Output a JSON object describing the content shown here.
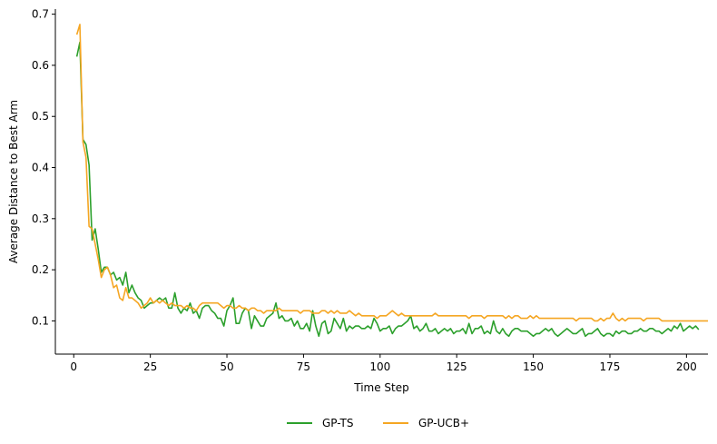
{
  "chart_data": {
    "type": "line",
    "xlabel": "Time Step",
    "ylabel": "Average Distance to Best Arm",
    "xlim": [
      -6,
      207
    ],
    "ylim": [
      0.035,
      0.71
    ],
    "xticks": [
      0,
      25,
      50,
      75,
      100,
      125,
      150,
      175,
      200
    ],
    "yticks": [
      0.1,
      0.2,
      0.3,
      0.4,
      0.5,
      0.6,
      0.7
    ],
    "ytick_labels": [
      "0.1",
      "0.2",
      "0.3",
      "0.4",
      "0.5",
      "0.6",
      "0.7"
    ],
    "grid": false,
    "legend_position": "bottom-center",
    "series": [
      {
        "name": "GP-TS",
        "color": "#2ca02c",
        "values": [
          0.617,
          0.645,
          0.455,
          0.445,
          0.405,
          0.258,
          0.28,
          0.24,
          0.195,
          0.205,
          0.205,
          0.19,
          0.195,
          0.18,
          0.185,
          0.17,
          0.195,
          0.155,
          0.17,
          0.155,
          0.145,
          0.14,
          0.125,
          0.13,
          0.135,
          0.135,
          0.14,
          0.145,
          0.14,
          0.145,
          0.125,
          0.125,
          0.155,
          0.125,
          0.115,
          0.125,
          0.12,
          0.135,
          0.115,
          0.12,
          0.105,
          0.125,
          0.13,
          0.13,
          0.12,
          0.115,
          0.105,
          0.105,
          0.09,
          0.12,
          0.13,
          0.145,
          0.095,
          0.095,
          0.115,
          0.125,
          0.12,
          0.085,
          0.11,
          0.1,
          0.09,
          0.09,
          0.105,
          0.11,
          0.115,
          0.135,
          0.105,
          0.11,
          0.1,
          0.1,
          0.105,
          0.09,
          0.1,
          0.085,
          0.085,
          0.095,
          0.08,
          0.12,
          0.09,
          0.07,
          0.095,
          0.1,
          0.075,
          0.08,
          0.105,
          0.095,
          0.085,
          0.105,
          0.08,
          0.09,
          0.085,
          0.09,
          0.09,
          0.085,
          0.085,
          0.09,
          0.085,
          0.105,
          0.095,
          0.08,
          0.085,
          0.085,
          0.09,
          0.075,
          0.085,
          0.09,
          0.09,
          0.095,
          0.1,
          0.11,
          0.085,
          0.09,
          0.08,
          0.085,
          0.095,
          0.08,
          0.08,
          0.085,
          0.075,
          0.08,
          0.085,
          0.08,
          0.085,
          0.075,
          0.08,
          0.08,
          0.085,
          0.075,
          0.095,
          0.075,
          0.085,
          0.085,
          0.09,
          0.075,
          0.08,
          0.075,
          0.1,
          0.08,
          0.075,
          0.085,
          0.075,
          0.07,
          0.08,
          0.085,
          0.085,
          0.08,
          0.08,
          0.08,
          0.075,
          0.07,
          0.075,
          0.075,
          0.08,
          0.085,
          0.08,
          0.085,
          0.075,
          0.07,
          0.075,
          0.08,
          0.085,
          0.08,
          0.075,
          0.075,
          0.08,
          0.085,
          0.07,
          0.075,
          0.075,
          0.08,
          0.085,
          0.075,
          0.07,
          0.075,
          0.075,
          0.07,
          0.08,
          0.075,
          0.08,
          0.08,
          0.075,
          0.075,
          0.08,
          0.08,
          0.085,
          0.08,
          0.08,
          0.085,
          0.085,
          0.08,
          0.08,
          0.075,
          0.08,
          0.085,
          0.08,
          0.09,
          0.085,
          0.095,
          0.08,
          0.085,
          0.09,
          0.085,
          0.09,
          0.083
        ]
      },
      {
        "name": "GP-UCB+",
        "color": "#f5a623",
        "values": [
          0.66,
          0.68,
          0.45,
          0.42,
          0.285,
          0.28,
          0.25,
          0.22,
          0.185,
          0.2,
          0.205,
          0.19,
          0.165,
          0.17,
          0.145,
          0.14,
          0.165,
          0.145,
          0.145,
          0.14,
          0.135,
          0.125,
          0.13,
          0.135,
          0.145,
          0.135,
          0.14,
          0.135,
          0.14,
          0.135,
          0.13,
          0.135,
          0.13,
          0.13,
          0.13,
          0.125,
          0.13,
          0.125,
          0.125,
          0.12,
          0.13,
          0.135,
          0.135,
          0.135,
          0.135,
          0.135,
          0.135,
          0.13,
          0.125,
          0.13,
          0.13,
          0.125,
          0.125,
          0.13,
          0.125,
          0.125,
          0.12,
          0.125,
          0.125,
          0.12,
          0.12,
          0.115,
          0.12,
          0.12,
          0.12,
          0.12,
          0.125,
          0.12,
          0.12,
          0.12,
          0.12,
          0.12,
          0.12,
          0.115,
          0.12,
          0.12,
          0.12,
          0.115,
          0.115,
          0.115,
          0.12,
          0.12,
          0.115,
          0.12,
          0.115,
          0.12,
          0.115,
          0.115,
          0.115,
          0.12,
          0.115,
          0.11,
          0.115,
          0.11,
          0.11,
          0.11,
          0.11,
          0.11,
          0.105,
          0.11,
          0.11,
          0.11,
          0.115,
          0.12,
          0.115,
          0.11,
          0.115,
          0.11,
          0.11,
          0.11,
          0.11,
          0.11,
          0.11,
          0.11,
          0.11,
          0.11,
          0.11,
          0.115,
          0.11,
          0.11,
          0.11,
          0.11,
          0.11,
          0.11,
          0.11,
          0.11,
          0.11,
          0.11,
          0.105,
          0.11,
          0.11,
          0.11,
          0.11,
          0.105,
          0.11,
          0.11,
          0.11,
          0.11,
          0.11,
          0.11,
          0.105,
          0.11,
          0.105,
          0.11,
          0.11,
          0.105,
          0.105,
          0.105,
          0.11,
          0.105,
          0.11,
          0.105,
          0.105,
          0.105,
          0.105,
          0.105,
          0.105,
          0.105,
          0.105,
          0.105,
          0.105,
          0.105,
          0.105,
          0.1,
          0.105,
          0.105,
          0.105,
          0.105,
          0.105,
          0.1,
          0.1,
          0.105,
          0.1,
          0.105,
          0.105,
          0.115,
          0.105,
          0.1,
          0.105,
          0.1,
          0.105,
          0.105,
          0.105,
          0.105,
          0.105,
          0.1,
          0.105,
          0.105,
          0.105,
          0.105,
          0.105,
          0.1,
          0.1,
          0.1,
          0.1,
          0.1,
          0.1,
          0.1,
          0.1,
          0.1,
          0.1,
          0.1,
          0.1,
          0.1,
          0.1,
          0.1,
          0.1
        ]
      }
    ]
  }
}
